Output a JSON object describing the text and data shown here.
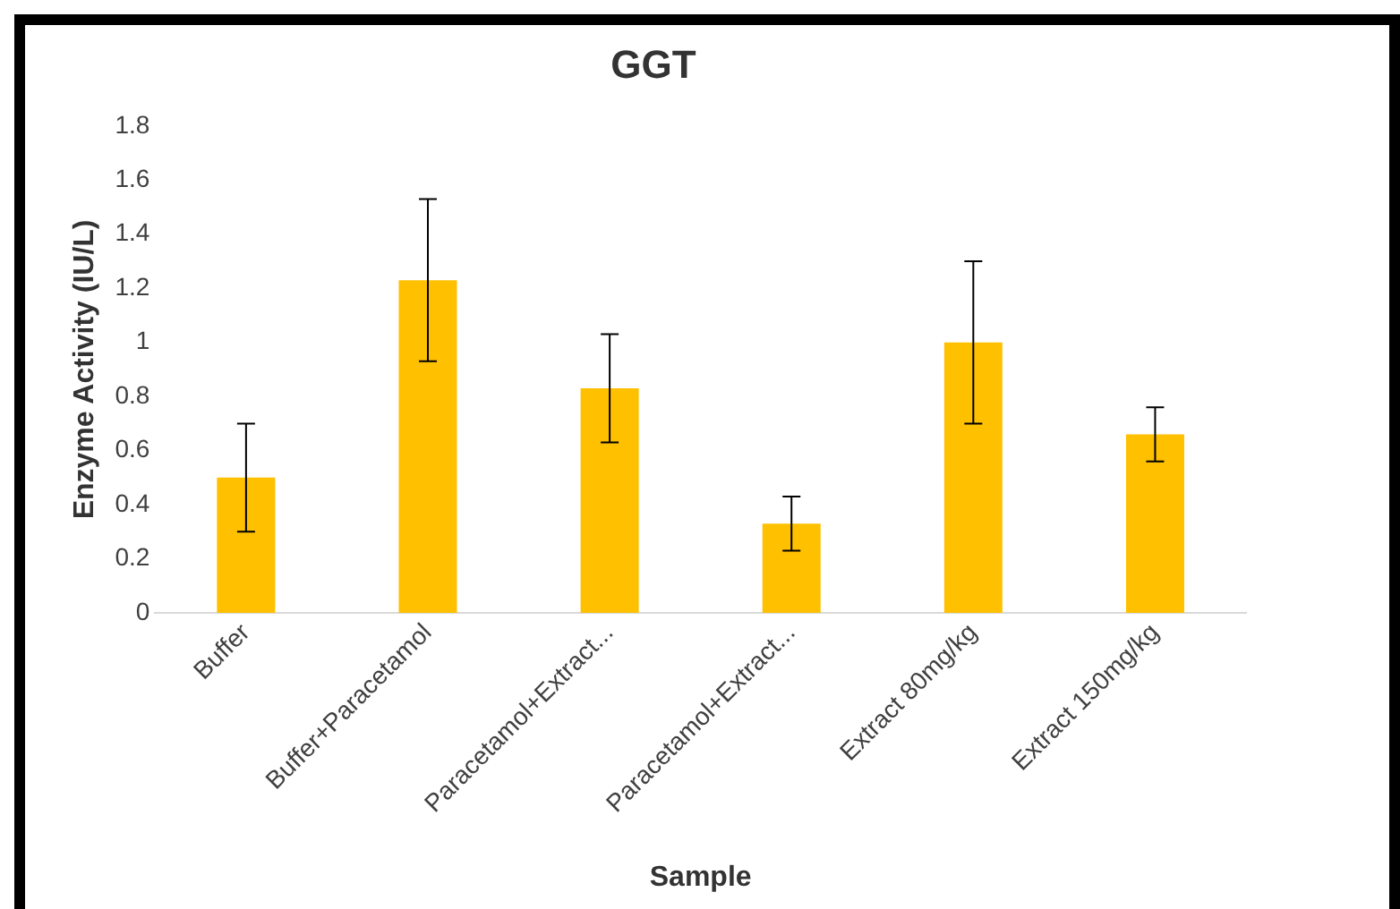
{
  "chart_data": {
    "type": "bar",
    "title": "GGT",
    "xlabel": "Sample",
    "ylabel": "Enzyme Activity (IU/L)",
    "categories": [
      "Buffer",
      "Buffer+Paracetamol",
      "Paracetamol+Extract...",
      "Paracetamol+Extract...",
      "Extract 80mg/kg",
      "Extract 150mg/kg"
    ],
    "values": [
      0.5,
      1.23,
      0.83,
      0.33,
      1.0,
      0.66
    ],
    "errors": [
      0.2,
      0.3,
      0.2,
      0.1,
      0.3,
      0.1
    ],
    "color": "#ffc000",
    "ylim": [
      0,
      1.8
    ],
    "yticks": [
      0,
      0.2,
      0.4,
      0.6,
      0.8,
      1,
      1.2,
      1.4,
      1.6,
      1.8
    ],
    "grid": false,
    "legend": false
  }
}
